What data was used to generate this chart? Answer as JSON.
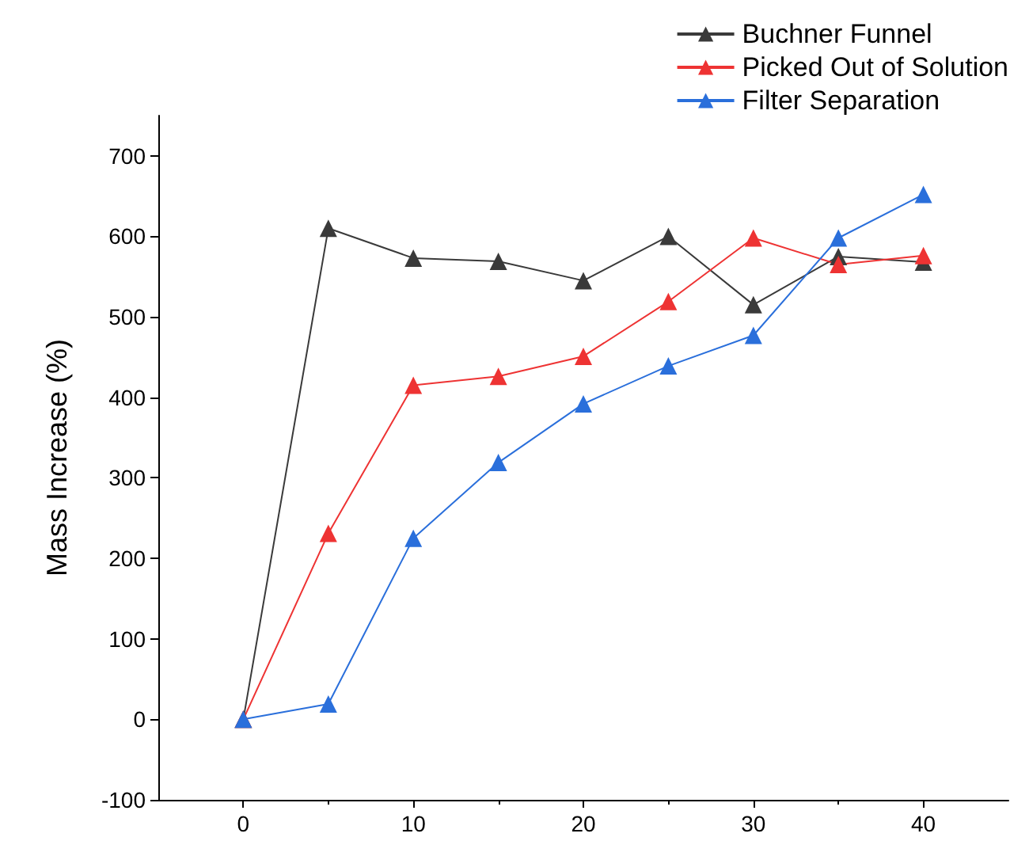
{
  "chart_data": {
    "type": "line",
    "ylabel": "Mass Increase (%)",
    "x": [
      0,
      5,
      10,
      15,
      20,
      25,
      30,
      35,
      40
    ],
    "series": [
      {
        "name": "Buchner Funnel",
        "color": "#3a3a3a",
        "values": [
          0,
          610,
          573,
          569,
          545,
          600,
          515,
          575,
          568
        ]
      },
      {
        "name": "Picked Out of Solution",
        "color": "#ee3333",
        "values": [
          0,
          231,
          415,
          426,
          451,
          519,
          598,
          565,
          576
        ]
      },
      {
        "name": "Filter Separation",
        "color": "#2a6fdb",
        "values": [
          0,
          19,
          225,
          319,
          392,
          439,
          477,
          598,
          652
        ]
      }
    ],
    "xlim": [
      -5,
      45
    ],
    "xticks": [
      0,
      10,
      20,
      30,
      40
    ],
    "ylim": [
      -100,
      750
    ],
    "yticks": [
      -100,
      0,
      100,
      200,
      300,
      400,
      500,
      600,
      700
    ],
    "legend": "top right",
    "marker": "triangle",
    "line_style": "solid"
  }
}
